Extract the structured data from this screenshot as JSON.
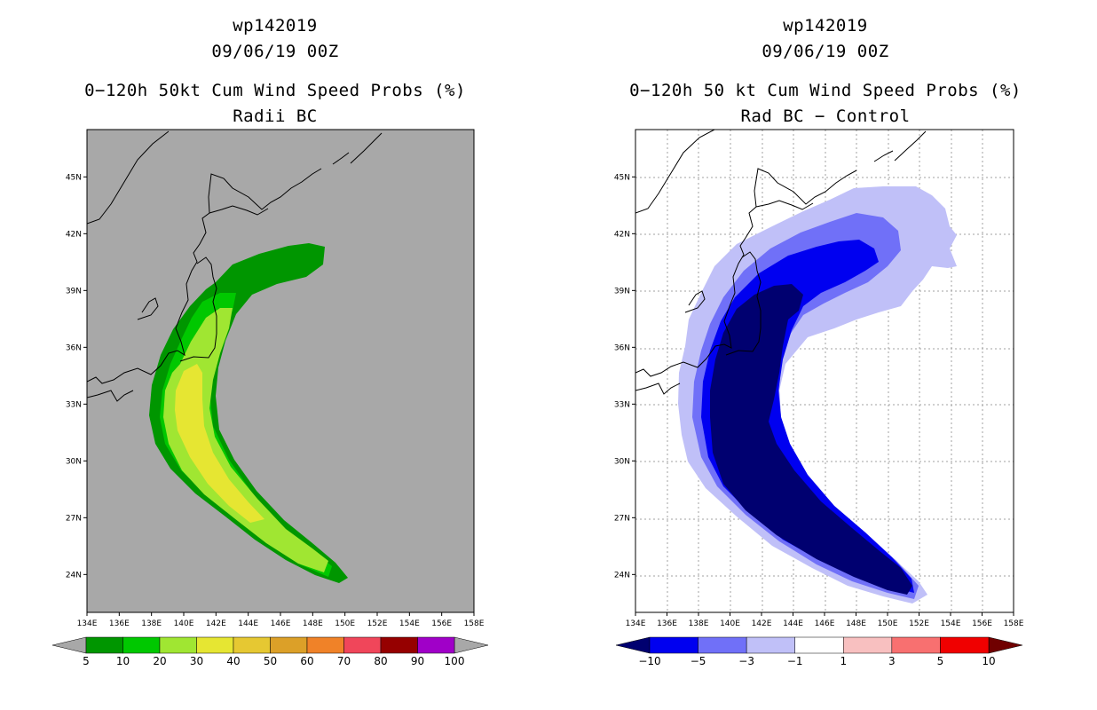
{
  "left_panel": {
    "storm_id": "wp142019",
    "datetime": "09/06/19 00Z",
    "title": "0−120h 50kt Cum Wind Speed Probs (%)",
    "subtitle": "Radii BC",
    "colorbar": {
      "labels": [
        "5",
        "10",
        "20",
        "30",
        "40",
        "50",
        "60",
        "70",
        "80",
        "90",
        "100"
      ],
      "colors": [
        "#009600",
        "#00c800",
        "#a0e632",
        "#e6e632",
        "#e6c832",
        "#dca028",
        "#f08228",
        "#f0465a",
        "#960000",
        "#a000c8"
      ],
      "end_color": "#a8a8a8"
    }
  },
  "right_panel": {
    "storm_id": "wp142019",
    "datetime": "09/06/19 00Z",
    "title": "0−120h 50 kt Cum Wind Speed Probs (%)",
    "subtitle": "Rad BC − Control",
    "colorbar": {
      "labels": [
        "−10",
        "−5",
        "−3",
        "−1",
        "1",
        "3",
        "5",
        "10"
      ],
      "colors": [
        "#0000f0",
        "#7070f8",
        "#c0c0f8",
        "#ffffff",
        "#f8c0c0",
        "#f87070",
        "#f00000"
      ],
      "left_end_color": "#000070",
      "right_end_color": "#700000"
    }
  },
  "axes": {
    "lon_labels": [
      "134E",
      "136E",
      "138E",
      "140E",
      "142E",
      "144E",
      "146E",
      "148E",
      "150E",
      "152E",
      "154E",
      "156E",
      "158E"
    ],
    "lat_labels": [
      "45N",
      "42N",
      "39N",
      "36N",
      "33N",
      "30N",
      "27N",
      "24N"
    ],
    "lon_range": [
      134,
      158
    ],
    "lat_range": [
      22,
      47.5
    ]
  },
  "colors": {
    "land_background_left": "#a8a8a8",
    "coast": "#000000"
  }
}
